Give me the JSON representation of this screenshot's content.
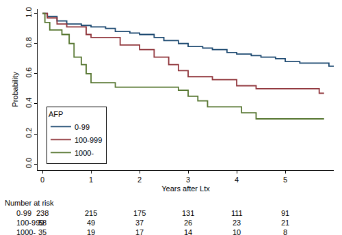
{
  "chart_data": {
    "type": "line",
    "line_style": "step",
    "x_label": "Years after Ltx",
    "y_label": "Probability",
    "legend_title": "AFP",
    "legend": "lower left",
    "grid": false,
    "xlim": [
      -0.1,
      6.0
    ],
    "xticks": [
      0,
      1,
      2,
      3,
      4,
      5
    ],
    "ylim": [
      -0.04,
      1.03
    ],
    "yticks": [
      {
        "value": 0,
        "label": "0.0"
      },
      {
        "value": 0.2,
        "label": "0.2"
      },
      {
        "value": 0.4,
        "label": "0.4"
      },
      {
        "value": 0.6,
        "label": "0.6"
      },
      {
        "value": 0.8,
        "label": "0.8"
      },
      {
        "value": 1,
        "label": "1.0"
      }
    ],
    "series": [
      {
        "name": "0-99",
        "color": "#1a476f",
        "x": [
          0,
          0.1,
          0.3,
          0.5,
          0.8,
          1.0,
          1.3,
          1.5,
          1.8,
          2.0,
          2.3,
          2.5,
          2.8,
          3.0,
          3.3,
          3.5,
          3.8,
          4.0,
          4.3,
          4.5,
          4.8,
          5.0,
          5.3,
          5.6,
          5.9,
          6.0
        ],
        "values": [
          1.0,
          0.98,
          0.95,
          0.93,
          0.92,
          0.91,
          0.9,
          0.88,
          0.87,
          0.86,
          0.84,
          0.82,
          0.8,
          0.78,
          0.77,
          0.76,
          0.74,
          0.73,
          0.72,
          0.71,
          0.7,
          0.68,
          0.67,
          0.67,
          0.65,
          0.65
        ]
      },
      {
        "name": "100-999",
        "color": "#90353b",
        "x": [
          0,
          0.1,
          0.3,
          0.5,
          0.9,
          1.0,
          1.6,
          2.0,
          2.3,
          2.6,
          2.8,
          3.0,
          3.5,
          4.0,
          4.4,
          5.7,
          5.8
        ],
        "values": [
          1.0,
          0.97,
          0.93,
          0.91,
          0.86,
          0.84,
          0.79,
          0.76,
          0.71,
          0.66,
          0.62,
          0.58,
          0.56,
          0.52,
          0.5,
          0.47,
          0.47
        ]
      },
      {
        "name": "1000-",
        "color": "#55752f",
        "x": [
          0,
          0.05,
          0.15,
          0.4,
          0.55,
          0.65,
          0.8,
          0.9,
          1.0,
          1.5,
          2.8,
          3.0,
          3.2,
          3.4,
          4.1,
          4.4,
          5.8
        ],
        "values": [
          1.0,
          0.94,
          0.89,
          0.86,
          0.8,
          0.71,
          0.66,
          0.6,
          0.54,
          0.51,
          0.49,
          0.45,
          0.42,
          0.38,
          0.34,
          0.3,
          0.3
        ]
      }
    ],
    "number_at_risk": {
      "title": "Number at risk",
      "times": [
        0,
        1,
        2,
        3,
        4,
        5
      ],
      "rows": [
        {
          "label": "0-99",
          "values": [
            238,
            215,
            175,
            131,
            111,
            91
          ]
        },
        {
          "label": "100-999",
          "values": [
            58,
            49,
            37,
            26,
            23,
            21
          ]
        },
        {
          "label": "1000-",
          "values": [
            35,
            19,
            17,
            14,
            10,
            8
          ]
        }
      ]
    }
  }
}
